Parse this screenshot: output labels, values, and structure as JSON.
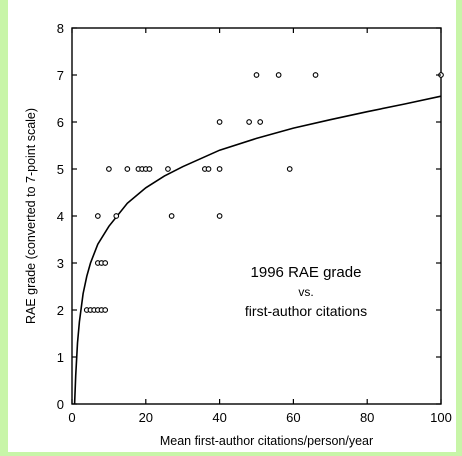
{
  "chart_data": {
    "type": "scatter",
    "xlabel": "Mean first-author citations/person/year",
    "ylabel": "RAE grade (converted to 7-point scale)",
    "xlim": [
      0,
      100
    ],
    "ylim": [
      0,
      8
    ],
    "xticks": [
      0,
      20,
      40,
      60,
      80,
      100
    ],
    "yticks": [
      0,
      1,
      2,
      3,
      4,
      5,
      6,
      7,
      8
    ],
    "grid": false,
    "annotation": {
      "line1": "1996 RAE grade",
      "line2": "vs.",
      "line3": "first-author citations"
    },
    "points": [
      [
        4,
        2
      ],
      [
        5,
        2
      ],
      [
        6,
        2
      ],
      [
        7,
        2
      ],
      [
        8,
        2
      ],
      [
        9,
        2
      ],
      [
        7,
        3
      ],
      [
        8,
        3
      ],
      [
        9,
        3
      ],
      [
        7,
        4
      ],
      [
        12,
        4
      ],
      [
        10,
        5
      ],
      [
        15,
        5
      ],
      [
        18,
        5
      ],
      [
        19,
        5
      ],
      [
        20,
        5
      ],
      [
        21,
        5
      ],
      [
        26,
        5
      ],
      [
        36,
        5
      ],
      [
        37,
        5
      ],
      [
        40,
        5
      ],
      [
        27,
        4
      ],
      [
        40,
        4
      ],
      [
        40,
        6
      ],
      [
        48,
        6
      ],
      [
        51,
        6
      ],
      [
        50,
        7
      ],
      [
        56,
        7
      ],
      [
        66,
        7
      ],
      [
        100,
        7
      ],
      [
        59,
        5
      ]
    ],
    "fit_curve": {
      "model": "log",
      "x": [
        0.7,
        1,
        1.5,
        2,
        3,
        4,
        5,
        7,
        10,
        15,
        20,
        25,
        30,
        40,
        50,
        60,
        70,
        80,
        90,
        100
      ],
      "y": [
        0.0,
        0.6,
        1.3,
        1.75,
        2.35,
        2.72,
        3.0,
        3.4,
        3.78,
        4.27,
        4.6,
        4.85,
        5.05,
        5.4,
        5.65,
        5.87,
        6.05,
        6.22,
        6.38,
        6.55
      ]
    }
  }
}
